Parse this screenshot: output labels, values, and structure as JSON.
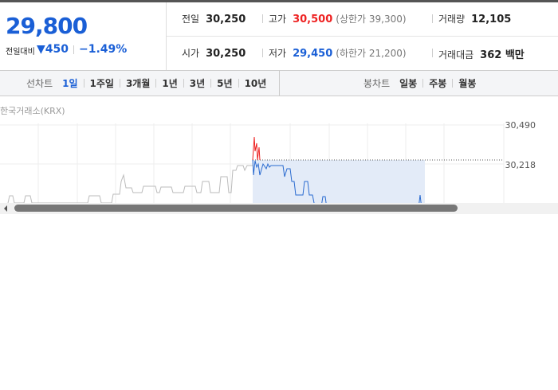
{
  "quote": {
    "price": "29,800",
    "change_label": "전일대비",
    "change": "450",
    "change_rate": "−1.49%"
  },
  "stats": [
    [
      {
        "label": "전일",
        "value": "30,250"
      },
      {
        "label": "고가",
        "value": "30,500",
        "note": "(상한가 39,300)"
      },
      {
        "label": "거래량",
        "value": "12,105"
      }
    ],
    [
      {
        "label": "시가",
        "value": "30,250"
      },
      {
        "label": "저가",
        "value": "29,450",
        "note": "(하한가 21,200)"
      },
      {
        "label": "거래대금",
        "value": "362 백만"
      }
    ]
  ],
  "tabs": {
    "line_label": "선차트",
    "line_periods": [
      "1일",
      "1주일",
      "3개월",
      "1년",
      "3년",
      "5년",
      "10년"
    ],
    "candle_label": "봉차트",
    "candle_periods": [
      "일봉",
      "주봉",
      "월봉"
    ]
  },
  "chart": {
    "source": "한국거래소(KRX)",
    "yticks": [
      "30,490",
      "30,218"
    ]
  }
}
